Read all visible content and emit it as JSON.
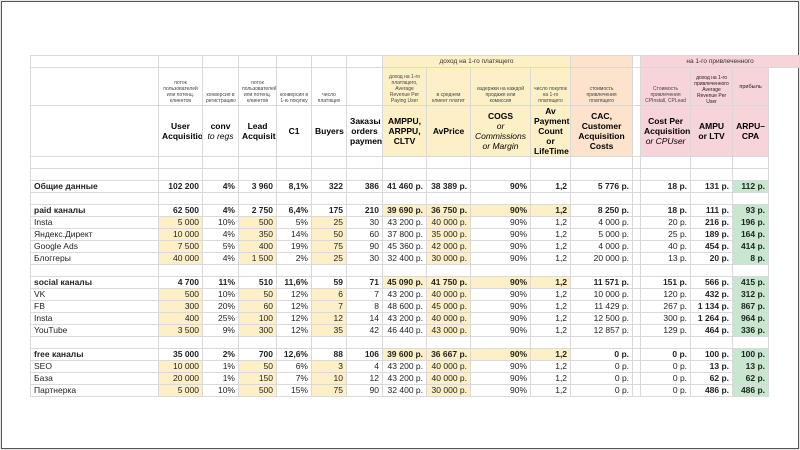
{
  "group_headers": {
    "paying": "доход на 1-го платящего",
    "attracted": "на 1-го привлеченного"
  },
  "sub_headers": {
    "ampu_desc": "доход на 1-го привлеченного Average Revenue Per User",
    "profit": "прибыль"
  },
  "desc_headers": [
    "",
    "поток пользователей или потенц. клиентов",
    "конверсия в регистрацию",
    "поток пользователей или потенц. клиентов",
    "конверсия в 1-ю покупку",
    "число платящих",
    "",
    "доход на 1-го платящего, Average Revenue Per Paying User",
    "в среднем клиент платит",
    "издержки на каждой продаже или комиссия",
    "число покупок на 1-го платящего",
    "стоимость привлечения платящего",
    "Стоимость привлечения CPInstall, CPLead",
    "",
    ""
  ],
  "columns": [
    {
      "main": ""
    },
    {
      "main": "User Acquisition",
      "sub": ""
    },
    {
      "main": "conv",
      "sub": "to regs"
    },
    {
      "main": "Lead Acquisition",
      "sub": ""
    },
    {
      "main": "C1",
      "sub": ""
    },
    {
      "main": "Buyers",
      "sub": ""
    },
    {
      "main": "Заказы orders payments",
      "sub": ""
    },
    {
      "main": "AMPPU, ARPPU, CLTV",
      "sub": ""
    },
    {
      "main": "AvPrice",
      "sub": ""
    },
    {
      "main": "COGS",
      "sub": "or Commissions or Margin"
    },
    {
      "main": "Av Payment Count or LifeTime",
      "sub": ""
    },
    {
      "main": "CAC, Customer Acquisition Costs",
      "sub": ""
    },
    {
      "main": "Cost Per Acquisition",
      "sub": "or CPUser"
    },
    {
      "main": "AMPU or LTV",
      "sub": ""
    },
    {
      "main": "ARPU–CPA",
      "sub": ""
    }
  ],
  "rows": [
    {
      "type": "sum",
      "cells": [
        "Общие данные",
        "102 200",
        "4%",
        "3 960",
        "8,1%",
        "322",
        "386",
        "41 460 р.",
        "38 389 р.",
        "90%",
        "1,2",
        "5 776 р.",
        "18 р.",
        "131 р.",
        "112 р."
      ]
    },
    {
      "type": "spacer"
    },
    {
      "type": "grp",
      "cells": [
        "paid каналы",
        "62 500",
        "4%",
        "2 750",
        "6,4%",
        "175",
        "210",
        "39 690 р.",
        "36 750 р.",
        "90%",
        "1,2",
        "8 250 р.",
        "18 р.",
        "111 р.",
        "93 р."
      ]
    },
    {
      "type": "item",
      "cells": [
        "Insta",
        "5 000",
        "10%",
        "500",
        "5%",
        "25",
        "30",
        "43 200 р.",
        "40 000 р.",
        "90%",
        "1,2",
        "4 000 р.",
        "20 р.",
        "216 р.",
        "196 р."
      ]
    },
    {
      "type": "item",
      "cells": [
        "Яндекс.Директ",
        "10 000",
        "4%",
        "350",
        "14%",
        "50",
        "60",
        "37 800 р.",
        "35 000 р.",
        "90%",
        "1,2",
        "5 000 р.",
        "25 р.",
        "189 р.",
        "164 р."
      ]
    },
    {
      "type": "item",
      "cells": [
        "Google Ads",
        "7 500",
        "5%",
        "400",
        "19%",
        "75",
        "90",
        "45 360 р.",
        "42 000 р.",
        "90%",
        "1,2",
        "4 000 р.",
        "40 р.",
        "454 р.",
        "414 р."
      ]
    },
    {
      "type": "item",
      "cells": [
        "Блоггеры",
        "40 000",
        "4%",
        "1 500",
        "2%",
        "25",
        "30",
        "32 400 р.",
        "30 000 р.",
        "90%",
        "1,2",
        "20 000 р.",
        "13 р.",
        "20 р.",
        "8 р."
      ]
    },
    {
      "type": "spacer"
    },
    {
      "type": "grp",
      "cells": [
        "social каналы",
        "4 700",
        "11%",
        "510",
        "11,6%",
        "59",
        "71",
        "45 090 р.",
        "41 750 р.",
        "90%",
        "1,2",
        "11 571 р.",
        "151 р.",
        "566 р.",
        "415 р."
      ]
    },
    {
      "type": "item",
      "cells": [
        "VK",
        "500",
        "10%",
        "50",
        "12%",
        "6",
        "7",
        "43 200 р.",
        "40 000 р.",
        "90%",
        "1,2",
        "10 000 р.",
        "120 р.",
        "432 р.",
        "312 р."
      ]
    },
    {
      "type": "item",
      "cells": [
        "FB",
        "300",
        "20%",
        "60",
        "12%",
        "7",
        "8",
        "48 600 р.",
        "45 000 р.",
        "90%",
        "1,2",
        "11 429 р.",
        "267 р.",
        "1 134 р.",
        "867 р."
      ]
    },
    {
      "type": "item",
      "cells": [
        "Insta",
        "400",
        "25%",
        "100",
        "12%",
        "12",
        "14",
        "43 200 р.",
        "40 000 р.",
        "90%",
        "1,2",
        "12 500 р.",
        "300 р.",
        "1 264 р.",
        "964 р."
      ]
    },
    {
      "type": "item",
      "cells": [
        "YouTube",
        "3 500",
        "9%",
        "300",
        "12%",
        "35",
        "42",
        "46 440 р.",
        "43 000 р.",
        "90%",
        "1,2",
        "12 857 р.",
        "129 р.",
        "464 р.",
        "336 р."
      ]
    },
    {
      "type": "spacer"
    },
    {
      "type": "grp",
      "cells": [
        "free каналы",
        "35 000",
        "2%",
        "700",
        "12,6%",
        "88",
        "106",
        "39 600 р.",
        "36 667 р.",
        "90%",
        "1,2",
        "0 р.",
        "0 р.",
        "100 р.",
        "100 р."
      ]
    },
    {
      "type": "item",
      "cells": [
        "SEO",
        "10 000",
        "1%",
        "50",
        "6%",
        "3",
        "4",
        "43 200 р.",
        "40 000 р.",
        "90%",
        "1,2",
        "0 р.",
        "0 р.",
        "13 р.",
        "13 р."
      ]
    },
    {
      "type": "item",
      "cells": [
        "База",
        "20 000",
        "1%",
        "150",
        "7%",
        "10",
        "12",
        "43 200 р.",
        "40 000 р.",
        "90%",
        "1,2",
        "0 р.",
        "0 р.",
        "62 р.",
        "62 р."
      ]
    },
    {
      "type": "item",
      "cells": [
        "Партнерка",
        "5 000",
        "10%",
        "500",
        "15%",
        "75",
        "90",
        "32 400 р.",
        "30 000 р.",
        "90%",
        "1,2",
        "0 р.",
        "0 р.",
        "486 р.",
        "486 р."
      ]
    }
  ],
  "colors": {
    "input": "#fdf0c7",
    "orange": "#fde2cc",
    "pink": "#f7d3da",
    "green": "#c6e8cf"
  }
}
